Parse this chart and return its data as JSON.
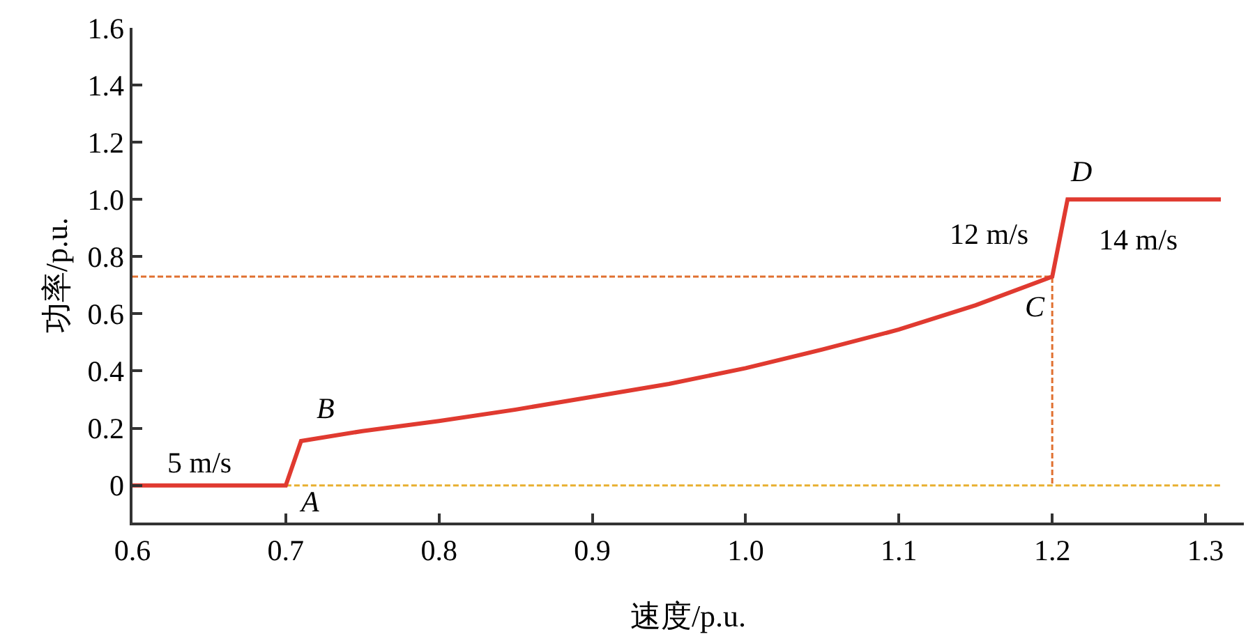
{
  "chart_data": {
    "type": "line",
    "xlabel": "速度/p.u.",
    "ylabel": "功率/p.u.",
    "xlim": [
      0.6,
      1.325
    ],
    "ylim": [
      -0.13,
      1.6
    ],
    "xticks": [
      0.6,
      0.7,
      0.8,
      0.9,
      {
        "value": 1.0,
        "label": "1.0"
      },
      1.1,
      1.2,
      1.3
    ],
    "yticks": [
      0,
      0.2,
      0.4,
      0.6,
      0.8,
      {
        "value": 1.0,
        "label": "1.0"
      },
      1.2,
      1.4,
      1.6
    ],
    "marker": "none",
    "series": [
      {
        "color": "#e8b030",
        "line_style": "dashed",
        "x": [
          0.7,
          1.31
        ],
        "values": [
          0,
          0
        ]
      },
      {
        "color": "#e07030",
        "line_style": "dashed",
        "x": [
          0.6,
          1.2,
          1.2
        ],
        "values": [
          0.73,
          0.73,
          0
        ]
      },
      {
        "color": "#e03a30",
        "line_style": "solid",
        "x": [
          0.6,
          0.7,
          0.71,
          0.75,
          0.8,
          0.85,
          0.9,
          0.95,
          1.0,
          1.05,
          1.1,
          1.15,
          1.2,
          1.21,
          1.31
        ],
        "values": [
          0,
          0,
          0.155,
          0.19,
          0.225,
          0.265,
          0.31,
          0.355,
          0.41,
          0.475,
          0.545,
          0.63,
          0.73,
          1.0,
          1.0
        ]
      }
    ],
    "annotations": [
      {
        "text": "5 m/s",
        "x": 0.7,
        "y": 0
      },
      {
        "text": "A",
        "x": 0.7,
        "y": 0
      },
      {
        "text": "B",
        "x": 0.71,
        "y": 0.155
      },
      {
        "text": "C",
        "x": 1.2,
        "y": 0.73
      },
      {
        "text": "D",
        "x": 1.21,
        "y": 1.0
      },
      {
        "text": "12 m/s",
        "x": 1.2,
        "y": 0.73
      },
      {
        "text": "14 m/s",
        "x": 1.21,
        "y": 1.0
      }
    ]
  }
}
